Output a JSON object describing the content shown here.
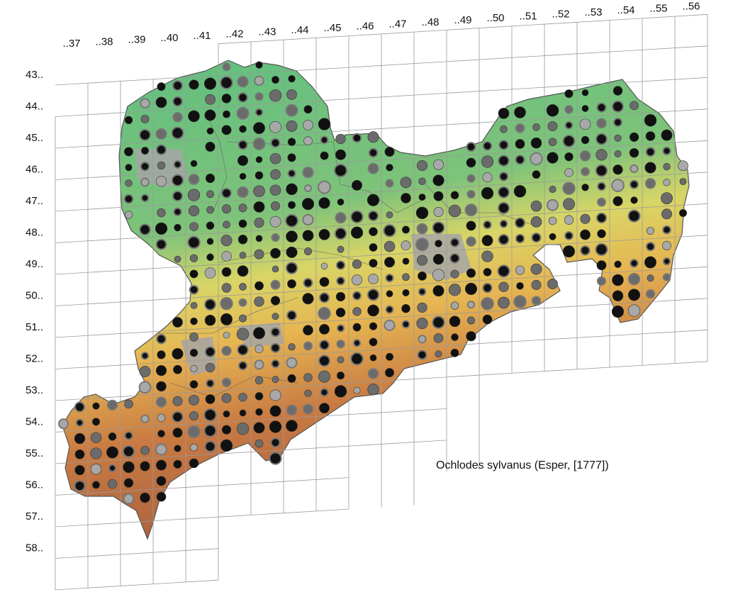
{
  "caption": "Ochlodes sylvanus (Esper, [1777])",
  "grid": {
    "column_labels": [
      "..37",
      "..38",
      "..39",
      "..40",
      "..41",
      "..42",
      "..43",
      "..44",
      "..45",
      "..46",
      "..47",
      "..48",
      "..49",
      "..50",
      "..51",
      "..52",
      "..53",
      "..54",
      "..55",
      "..56"
    ],
    "row_labels": [
      "43..",
      "44..",
      "45..",
      "46..",
      "47..",
      "48..",
      "49..",
      "50..",
      "51..",
      "52..",
      "53..",
      "54..",
      "55..",
      "56..",
      "57..",
      "58.."
    ]
  },
  "colors": {
    "grid_line": "#9a9a9a",
    "elevation_low": "#5fbf7f",
    "elevation_mid": "#e8d15a",
    "elevation_high": "#b8643c",
    "urban": "#a6a6a6",
    "border": "#555555",
    "dot_recent": "#111111",
    "dot_older": "#6b6b6b",
    "dot_oldest": "#a8a8a8"
  }
}
